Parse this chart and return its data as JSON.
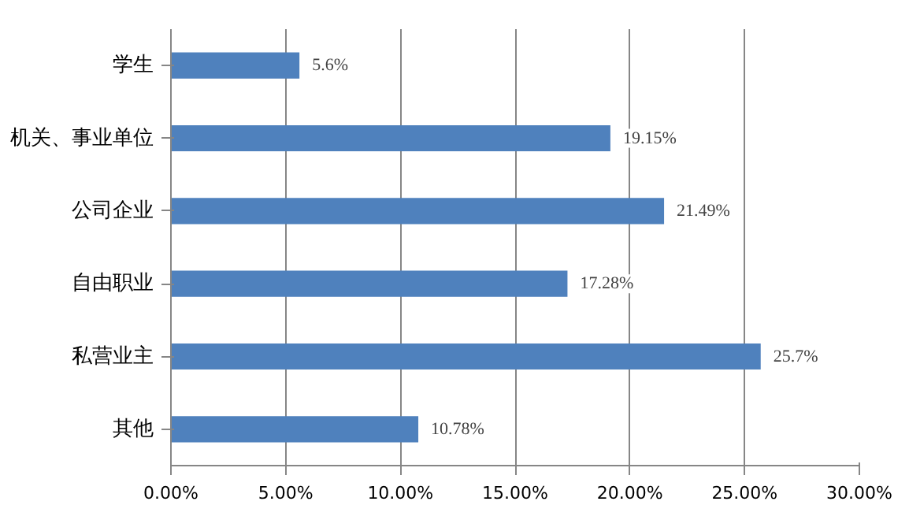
{
  "chart_data": {
    "type": "bar",
    "orientation": "horizontal",
    "categories": [
      "学生",
      "机关、事业单位",
      "公司企业",
      "自由职业",
      "私营业主",
      "其他"
    ],
    "values": [
      5.6,
      19.15,
      21.49,
      17.28,
      25.7,
      10.78
    ],
    "value_labels": [
      "5.6%",
      "19.15%",
      "21.49%",
      "17.28%",
      "25.7%",
      "10.78%"
    ],
    "color": "#4f81bd",
    "xlim": [
      0,
      30
    ],
    "xticks": [
      {
        "value": 0,
        "label": "0.00%"
      },
      {
        "value": 5,
        "label": "5.00%"
      },
      {
        "value": 10,
        "label": "10.00%"
      },
      {
        "value": 15,
        "label": "15.00%"
      },
      {
        "value": 20,
        "label": "20.00%"
      },
      {
        "value": 25,
        "label": "25.00%"
      },
      {
        "value": 30,
        "label": "30.00%"
      }
    ],
    "grid": "x"
  }
}
